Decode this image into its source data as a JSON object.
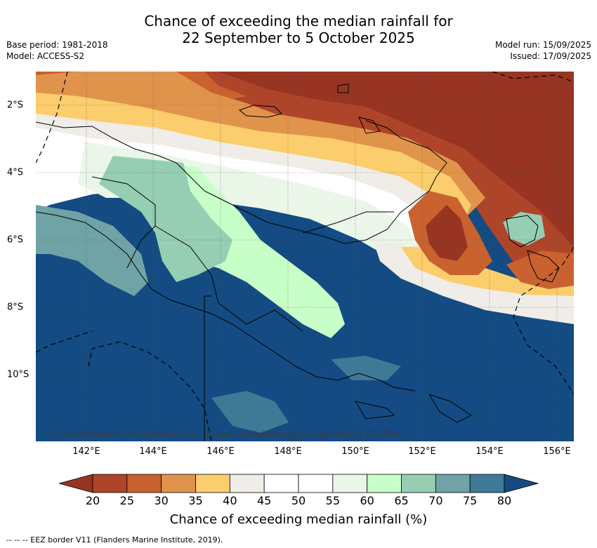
{
  "title_line1": "Chance of exceeding the median rainfall for",
  "title_line2": "22 September to 5 October 2025",
  "meta": {
    "base_period": "Base period: 1981-2018",
    "model": "Model: ACCESS-S2",
    "model_run": "Model run: 15/09/2025",
    "issued": "Issued: 17/09/2025"
  },
  "map": {
    "lon_ticks": [
      "142°E",
      "144°E",
      "146°E",
      "148°E",
      "150°E",
      "152°E",
      "154°E",
      "156°E"
    ],
    "lat_ticks": [
      "2°S",
      "4°S",
      "6°S",
      "8°S",
      "10°S"
    ],
    "copyright": "© Commonwealth of Australia 2025, Bureau of Meteorology, supported by COSPPac"
  },
  "colorbar": {
    "title": "Chance of exceeding median rainfall (%)",
    "labels": [
      "20",
      "25",
      "30",
      "35",
      "40",
      "45",
      "50",
      "55",
      "60",
      "65",
      "70",
      "75",
      "80"
    ],
    "under_color": "#973422",
    "over_color": "#134b82",
    "colors": [
      "#ae4529",
      "#c9622f",
      "#e0944b",
      "#fbcd6c",
      "#f0ede8",
      "#ffffff",
      "#ffffff",
      "#eaf7e8",
      "#c8ffc8",
      "#96ceb4",
      "#6fa3a5",
      "#3e7a96"
    ]
  },
  "footnote": "-- -- -- EEZ border V11 (Flanders Marine Institute, 2019)."
}
